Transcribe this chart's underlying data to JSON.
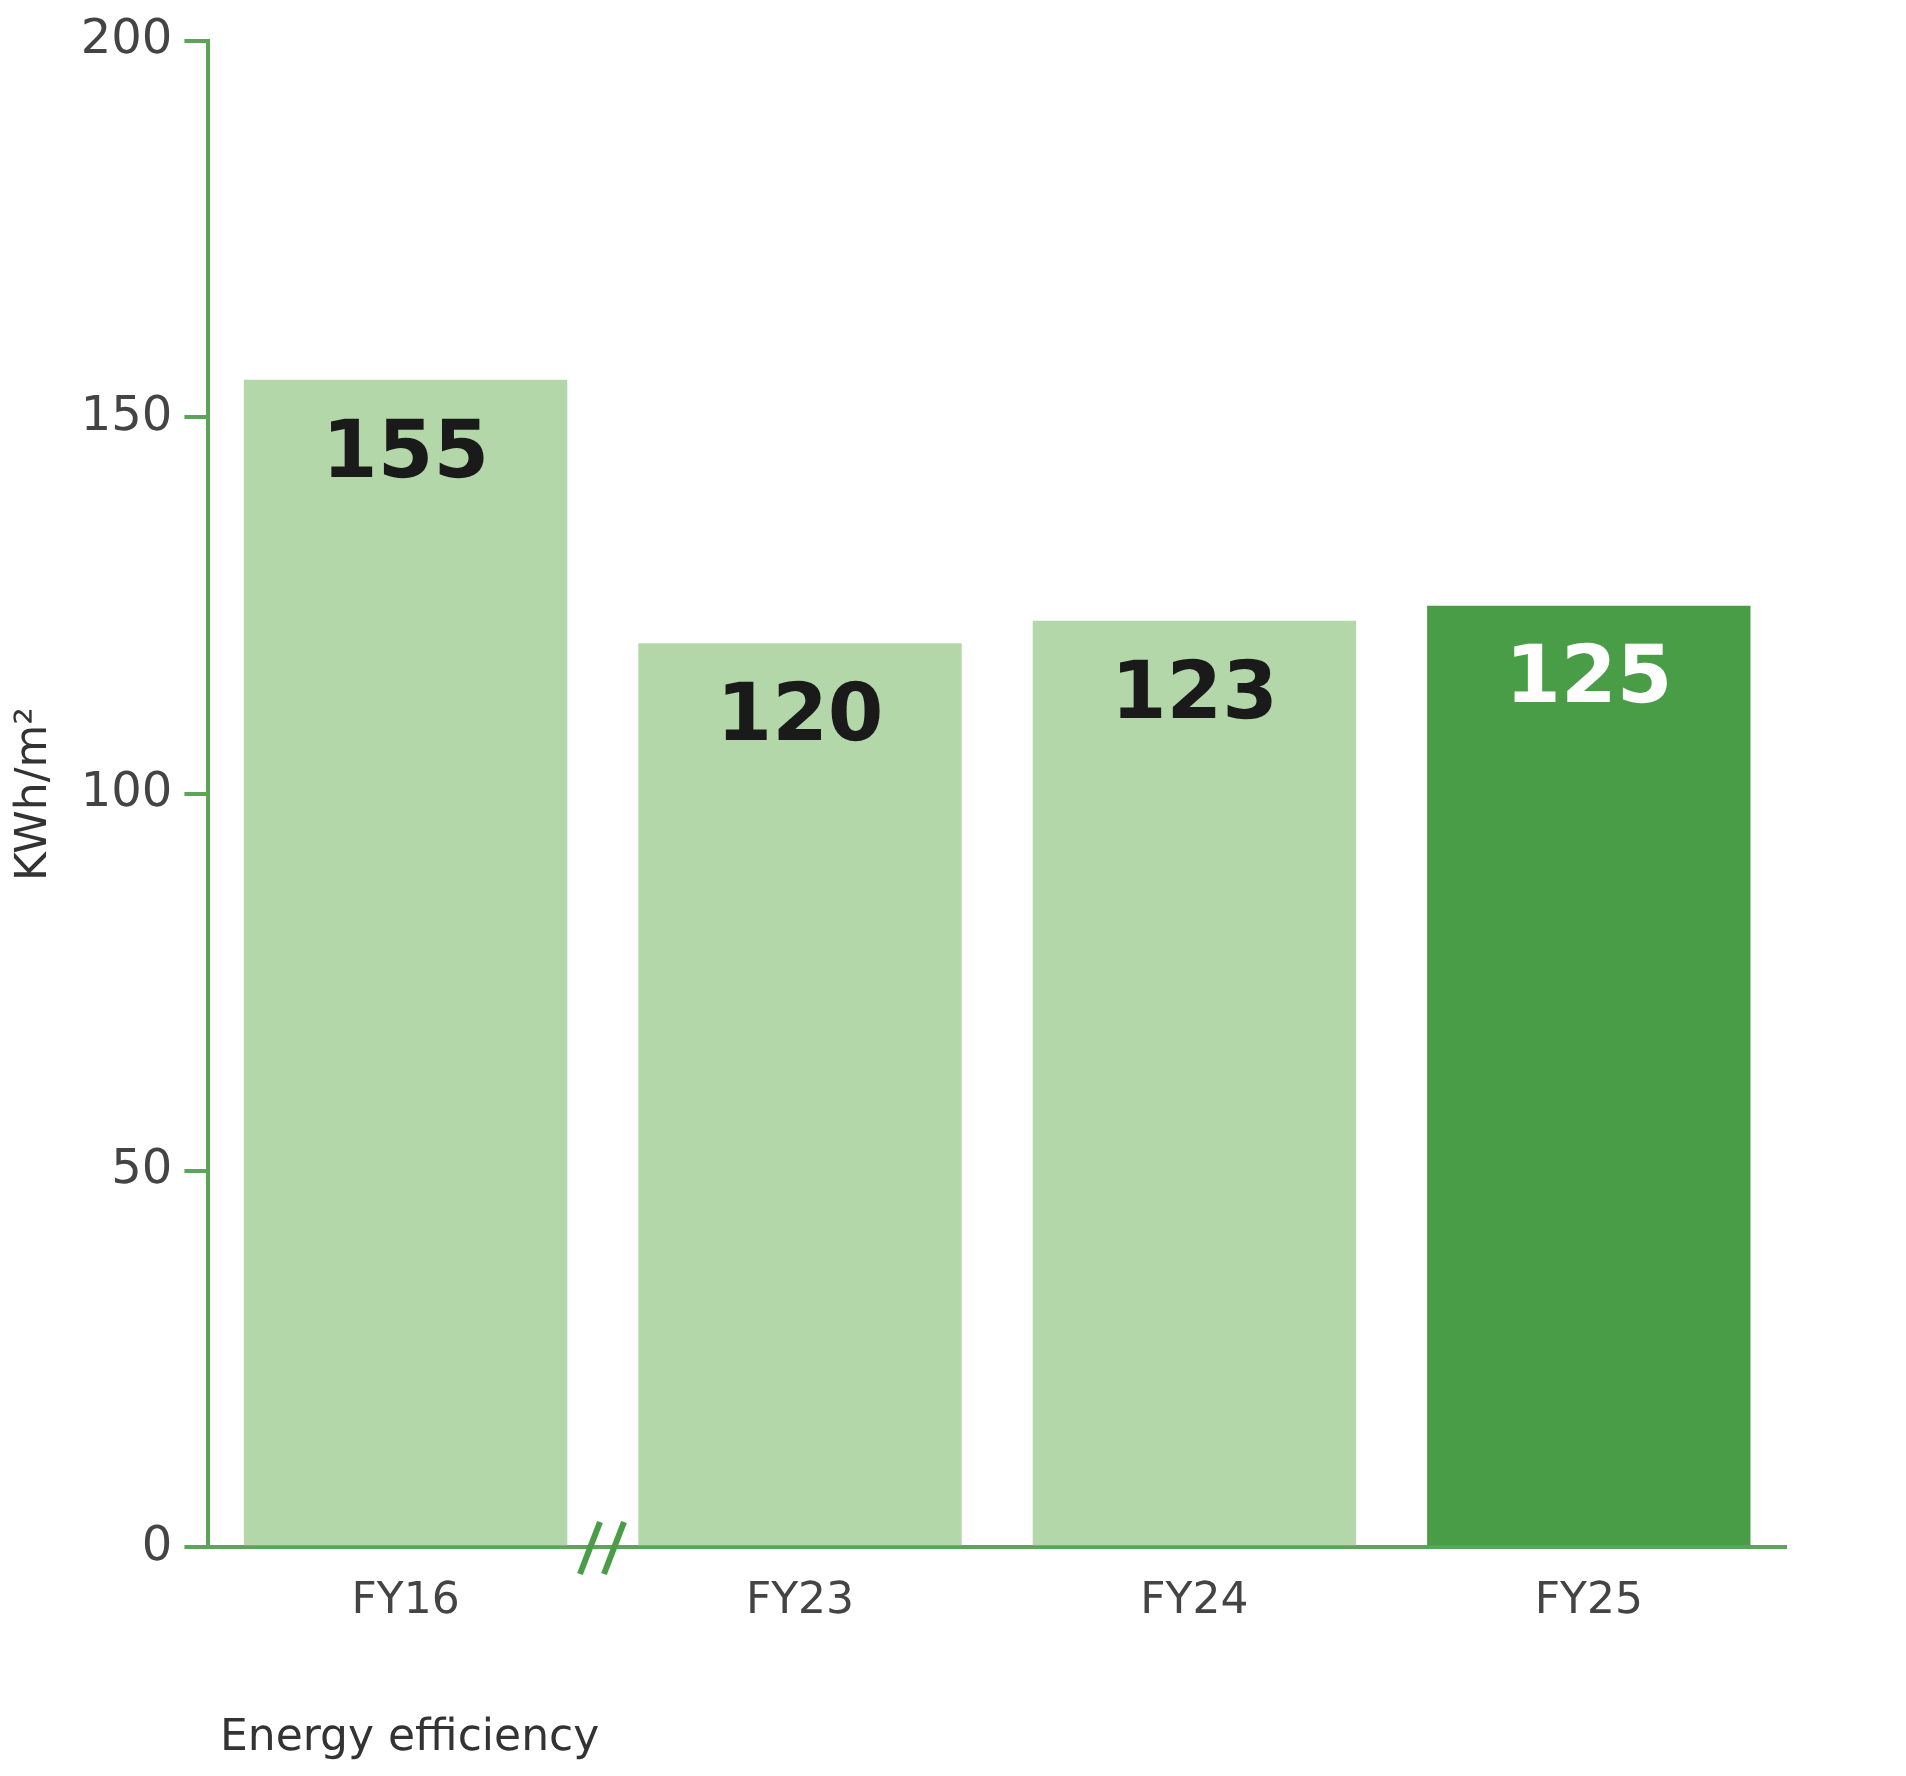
{
  "chart_data": {
    "type": "bar",
    "xlabel": "Energy efficiency",
    "ylabel": "KWh/m²",
    "categories": [
      "FY16",
      "FY23",
      "FY24",
      "FY25"
    ],
    "values": [
      155,
      120,
      123,
      125
    ],
    "colors": [
      "#b3d7a9",
      "#b3d7a9",
      "#b3d7a9",
      "#4a9d47"
    ],
    "ylim": [
      0,
      200
    ],
    "yticks": [
      0,
      50,
      100,
      150,
      200
    ],
    "grid": false,
    "legend": false,
    "data_labels": true
  }
}
